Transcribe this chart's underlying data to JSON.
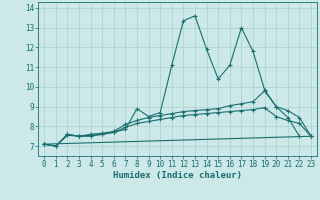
{
  "xlabel": "Humidex (Indice chaleur)",
  "bg_color": "#cce8e8",
  "line_color": "#1a6e6e",
  "grid_color": "#afd4d4",
  "xlim": [
    -0.5,
    23.5
  ],
  "ylim": [
    6.5,
    14.3
  ],
  "xticks": [
    0,
    1,
    2,
    3,
    4,
    5,
    6,
    7,
    8,
    9,
    10,
    11,
    12,
    13,
    14,
    15,
    16,
    17,
    18,
    19,
    20,
    21,
    22,
    23
  ],
  "yticks": [
    7,
    8,
    9,
    10,
    11,
    12,
    13,
    14
  ],
  "series": [
    {
      "x": [
        0,
        1,
        2,
        3,
        4,
        5,
        6,
        7,
        8,
        9,
        10,
        11,
        12,
        13,
        14,
        15,
        16,
        17,
        18,
        19,
        20,
        21,
        22
      ],
      "y": [
        7.1,
        7.0,
        7.6,
        7.5,
        7.5,
        7.6,
        7.7,
        7.85,
        8.9,
        8.5,
        8.7,
        11.1,
        13.35,
        13.6,
        11.9,
        10.4,
        11.1,
        13.0,
        11.8,
        9.85,
        9.0,
        8.45,
        7.5
      ]
    },
    {
      "x": [
        0,
        1,
        2,
        3,
        4,
        5,
        6,
        7,
        8,
        9,
        10,
        11,
        12,
        13,
        14,
        15,
        16,
        17,
        18,
        19,
        20,
        21,
        22,
        23
      ],
      "y": [
        7.1,
        7.0,
        7.6,
        7.5,
        7.6,
        7.65,
        7.75,
        8.1,
        8.3,
        8.45,
        8.55,
        8.65,
        8.75,
        8.8,
        8.85,
        8.9,
        9.05,
        9.15,
        9.25,
        9.8,
        9.0,
        8.8,
        8.45,
        7.5
      ]
    },
    {
      "x": [
        0,
        1,
        2,
        3,
        4,
        5,
        6,
        7,
        8,
        9,
        10,
        11,
        12,
        13,
        14,
        15,
        16,
        17,
        18,
        19,
        20,
        21,
        22,
        23
      ],
      "y": [
        7.1,
        7.0,
        7.55,
        7.5,
        7.55,
        7.6,
        7.7,
        7.95,
        8.15,
        8.25,
        8.35,
        8.45,
        8.55,
        8.6,
        8.65,
        8.7,
        8.75,
        8.8,
        8.85,
        8.95,
        8.5,
        8.3,
        8.15,
        7.5
      ]
    },
    {
      "x": [
        0,
        23
      ],
      "y": [
        7.1,
        7.5
      ]
    }
  ],
  "label_fontsize": 6.5,
  "tick_fontsize": 5.5,
  "marker": "+",
  "markersize": 3,
  "linewidth": 0.8
}
